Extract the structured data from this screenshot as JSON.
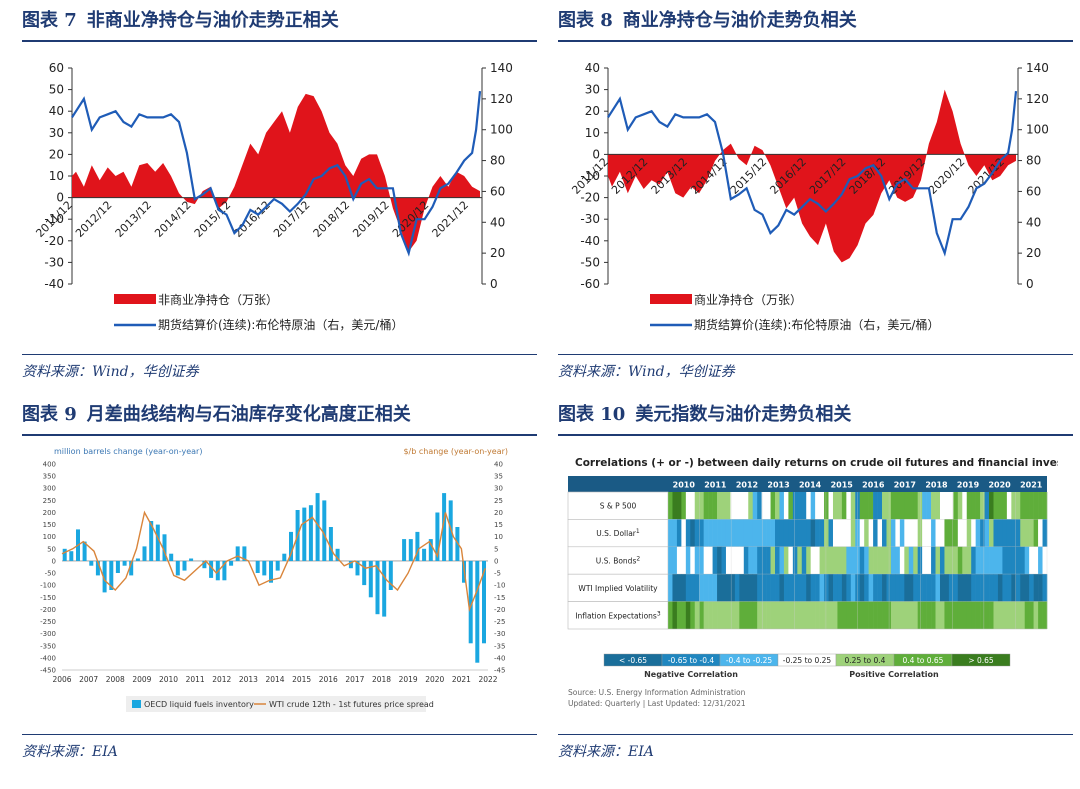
{
  "figures": [
    {
      "num": "图表 7",
      "title": "非商业净持仓与油价走势正相关",
      "source": "资料来源：Wind，华创证券"
    },
    {
      "num": "图表 8",
      "title": "商业净持仓与油价走势负相关",
      "source": "资料来源：Wind，华创证券"
    },
    {
      "num": "图表 9",
      "title": "月差曲线结构与石油库存变化高度正相关",
      "source": "资料来源：EIA"
    },
    {
      "num": "图表 10",
      "title": "美元指数与油价走势负相关",
      "source": "资料来源：EIA"
    }
  ],
  "chart_data": [
    {
      "type": "area",
      "left_ylim": [
        -40,
        60
      ],
      "left_yticks": [
        60,
        50,
        40,
        30,
        20,
        10,
        0,
        -10,
        -20,
        -30,
        -40
      ],
      "right_ylim": [
        0,
        140
      ],
      "right_yticks": [
        140,
        120,
        100,
        80,
        60,
        40,
        20,
        0
      ],
      "x_ticks": [
        "2011/12",
        "2012/12",
        "2013/12",
        "2014/12",
        "2015/12",
        "2016/12",
        "2017/12",
        "2018/12",
        "2019/12",
        "2020/12",
        "2021/12"
      ],
      "series": [
        {
          "name": "非商业净持仓（万张）",
          "kind": "area",
          "axis": "left",
          "color": "#e0141b",
          "x": [
            2011.9,
            2012.0,
            2012.2,
            2012.4,
            2012.6,
            2012.8,
            2013.0,
            2013.2,
            2013.4,
            2013.6,
            2013.8,
            2014.0,
            2014.2,
            2014.4,
            2014.6,
            2014.8,
            2015.0,
            2015.2,
            2015.4,
            2015.6,
            2015.8,
            2016.0,
            2016.2,
            2016.4,
            2016.6,
            2016.8,
            2017.0,
            2017.2,
            2017.4,
            2017.6,
            2017.8,
            2018.0,
            2018.2,
            2018.4,
            2018.6,
            2018.8,
            2019.0,
            2019.2,
            2019.4,
            2019.6,
            2019.8,
            2020.0,
            2020.2,
            2020.4,
            2020.6,
            2020.8,
            2021.0,
            2021.2,
            2021.4,
            2021.6,
            2021.8,
            2022.0,
            2022.2
          ],
          "values": [
            10,
            12,
            5,
            15,
            8,
            14,
            10,
            12,
            5,
            15,
            16,
            12,
            16,
            10,
            2,
            -2,
            -3,
            3,
            5,
            -5,
            -2,
            5,
            15,
            25,
            20,
            30,
            35,
            40,
            30,
            42,
            48,
            47,
            40,
            30,
            25,
            15,
            10,
            18,
            20,
            20,
            10,
            -5,
            -15,
            -25,
            -20,
            -5,
            5,
            10,
            5,
            12,
            10,
            5,
            3
          ]
        },
        {
          "name": "期货结算价(连续):布伦特原油（右，美元/桶）",
          "kind": "line",
          "axis": "right",
          "color": "#1f5cb7",
          "x": [
            2011.9,
            2012.0,
            2012.2,
            2012.4,
            2012.6,
            2012.8,
            2013.0,
            2013.2,
            2013.4,
            2013.6,
            2013.8,
            2014.0,
            2014.2,
            2014.4,
            2014.6,
            2014.8,
            2015.0,
            2015.2,
            2015.4,
            2015.6,
            2015.8,
            2016.0,
            2016.2,
            2016.4,
            2016.6,
            2016.8,
            2017.0,
            2017.2,
            2017.4,
            2017.6,
            2017.8,
            2018.0,
            2018.2,
            2018.4,
            2018.6,
            2018.8,
            2019.0,
            2019.2,
            2019.4,
            2019.6,
            2019.8,
            2020.0,
            2020.2,
            2020.4,
            2020.6,
            2020.8,
            2021.0,
            2021.2,
            2021.4,
            2021.6,
            2021.8,
            2022.0,
            2022.1,
            2022.2
          ],
          "values": [
            108,
            112,
            120,
            100,
            108,
            110,
            112,
            105,
            102,
            110,
            108,
            108,
            108,
            110,
            105,
            85,
            55,
            58,
            62,
            48,
            45,
            33,
            38,
            48,
            45,
            50,
            55,
            52,
            47,
            52,
            58,
            68,
            70,
            75,
            77,
            70,
            55,
            65,
            68,
            62,
            62,
            62,
            33,
            20,
            42,
            42,
            50,
            62,
            65,
            72,
            80,
            85,
            100,
            125
          ]
        }
      ]
    },
    {
      "type": "area",
      "left_ylim": [
        -60,
        40
      ],
      "left_yticks": [
        40,
        30,
        20,
        10,
        0,
        -10,
        -20,
        -30,
        -40,
        -50,
        -60
      ],
      "right_ylim": [
        0,
        140
      ],
      "right_yticks": [
        140,
        120,
        100,
        80,
        60,
        40,
        20,
        0
      ],
      "x_ticks": [
        "2011/12",
        "2012/12",
        "2013/12",
        "2014/12",
        "2015/12",
        "2016/12",
        "2017/12",
        "2018/12",
        "2019/12",
        "2020/12",
        "2021/12"
      ],
      "series": [
        {
          "name": "商业净持仓（万张）",
          "kind": "area",
          "axis": "left",
          "color": "#e0141b",
          "x": [
            2011.9,
            2012.0,
            2012.2,
            2012.4,
            2012.6,
            2012.8,
            2013.0,
            2013.2,
            2013.4,
            2013.6,
            2013.8,
            2014.0,
            2014.2,
            2014.4,
            2014.6,
            2014.8,
            2015.0,
            2015.2,
            2015.4,
            2015.6,
            2015.8,
            2016.0,
            2016.2,
            2016.4,
            2016.6,
            2016.8,
            2017.0,
            2017.2,
            2017.4,
            2017.6,
            2017.8,
            2018.0,
            2018.2,
            2018.4,
            2018.6,
            2018.8,
            2019.0,
            2019.2,
            2019.4,
            2019.6,
            2019.8,
            2020.0,
            2020.2,
            2020.4,
            2020.6,
            2020.8,
            2021.0,
            2021.2,
            2021.4,
            2021.6,
            2021.8,
            2022.0,
            2022.2
          ],
          "values": [
            -10,
            -15,
            -8,
            -18,
            -10,
            -16,
            -12,
            -14,
            -8,
            -18,
            -20,
            -15,
            -18,
            -12,
            -3,
            2,
            5,
            -2,
            -5,
            4,
            2,
            -5,
            -15,
            -25,
            -20,
            -32,
            -38,
            -42,
            -32,
            -45,
            -50,
            -48,
            -42,
            -32,
            -28,
            -18,
            -12,
            -20,
            -22,
            -20,
            -12,
            5,
            15,
            30,
            20,
            5,
            -5,
            -10,
            -5,
            -12,
            -10,
            -5,
            -3
          ]
        },
        {
          "name": "期货结算价(连续):布伦特原油（右，美元/桶）",
          "kind": "line",
          "axis": "right",
          "color": "#1f5cb7",
          "x": [
            2011.9,
            2012.0,
            2012.2,
            2012.4,
            2012.6,
            2012.8,
            2013.0,
            2013.2,
            2013.4,
            2013.6,
            2013.8,
            2014.0,
            2014.2,
            2014.4,
            2014.6,
            2014.8,
            2015.0,
            2015.2,
            2015.4,
            2015.6,
            2015.8,
            2016.0,
            2016.2,
            2016.4,
            2016.6,
            2016.8,
            2017.0,
            2017.2,
            2017.4,
            2017.6,
            2017.8,
            2018.0,
            2018.2,
            2018.4,
            2018.6,
            2018.8,
            2019.0,
            2019.2,
            2019.4,
            2019.6,
            2019.8,
            2020.0,
            2020.2,
            2020.4,
            2020.6,
            2020.8,
            2021.0,
            2021.2,
            2021.4,
            2021.6,
            2021.8,
            2022.0,
            2022.1,
            2022.2
          ],
          "values": [
            108,
            112,
            120,
            100,
            108,
            110,
            112,
            105,
            102,
            110,
            108,
            108,
            108,
            110,
            105,
            85,
            55,
            58,
            62,
            48,
            45,
            33,
            38,
            48,
            45,
            50,
            55,
            52,
            47,
            52,
            58,
            68,
            70,
            75,
            77,
            70,
            55,
            65,
            68,
            62,
            62,
            62,
            33,
            20,
            42,
            42,
            50,
            62,
            65,
            72,
            80,
            85,
            100,
            125
          ]
        }
      ]
    },
    {
      "type": "bar",
      "left_label": "million barrels change (year-on-year)",
      "right_label": "$/b change (year-on-year)",
      "left_ylim": [
        -450,
        400
      ],
      "left_yticks": [
        400,
        350,
        300,
        250,
        200,
        150,
        100,
        50,
        0,
        -50,
        -100,
        -150,
        -200,
        -250,
        -300,
        -350,
        -400,
        -450
      ],
      "right_ylim": [
        -45,
        40
      ],
      "right_yticks": [
        40,
        35,
        30,
        25,
        20,
        15,
        10,
        5,
        0,
        -5,
        -10,
        -15,
        -20,
        -25,
        -30,
        -35,
        -40,
        -45
      ],
      "x_ticks": [
        "2006",
        "2007",
        "2008",
        "2009",
        "2010",
        "2011",
        "2012",
        "2013",
        "2014",
        "2015",
        "2016",
        "2017",
        "2018",
        "2019",
        "2020",
        "2021",
        "2022"
      ],
      "series": [
        {
          "name": "OECD liquid fuels inventory",
          "kind": "bar",
          "axis": "left",
          "color": "#1aa7e0",
          "x": [
            2006.1,
            2006.35,
            2006.6,
            2006.85,
            2007.1,
            2007.35,
            2007.6,
            2007.85,
            2008.1,
            2008.35,
            2008.6,
            2008.85,
            2009.1,
            2009.35,
            2009.6,
            2009.85,
            2010.1,
            2010.35,
            2010.6,
            2010.85,
            2011.1,
            2011.35,
            2011.6,
            2011.85,
            2012.1,
            2012.35,
            2012.6,
            2012.85,
            2013.1,
            2013.35,
            2013.6,
            2013.85,
            2014.1,
            2014.35,
            2014.6,
            2014.85,
            2015.1,
            2015.35,
            2015.6,
            2015.85,
            2016.1,
            2016.35,
            2016.6,
            2016.85,
            2017.1,
            2017.35,
            2017.6,
            2017.85,
            2018.1,
            2018.35,
            2018.6,
            2018.85,
            2019.1,
            2019.35,
            2019.6,
            2019.85,
            2020.1,
            2020.35,
            2020.6,
            2020.85,
            2021.1,
            2021.35,
            2021.6,
            2021.85
          ],
          "values": [
            50,
            40,
            130,
            80,
            -20,
            -60,
            -130,
            -120,
            -50,
            -20,
            -60,
            10,
            60,
            165,
            150,
            110,
            30,
            -60,
            -40,
            10,
            0,
            -30,
            -70,
            -80,
            -80,
            -20,
            60,
            60,
            0,
            -50,
            -60,
            -90,
            -40,
            30,
            120,
            210,
            220,
            230,
            280,
            250,
            140,
            50,
            0,
            -30,
            -60,
            -100,
            -150,
            -220,
            -230,
            -120,
            0,
            90,
            90,
            120,
            50,
            90,
            200,
            280,
            250,
            140,
            -90,
            -340,
            -420,
            -340
          ]
        },
        {
          "name": "WTI crude 12th - 1st futures price spread",
          "kind": "line",
          "axis": "right",
          "color": "#d9853b",
          "x": [
            2006.0,
            2006.4,
            2006.8,
            2007.2,
            2007.6,
            2008.0,
            2008.4,
            2008.8,
            2009.1,
            2009.4,
            2009.8,
            2010.2,
            2010.6,
            2011.0,
            2011.4,
            2011.8,
            2012.2,
            2012.6,
            2013.0,
            2013.4,
            2013.8,
            2014.2,
            2014.6,
            2015.0,
            2015.4,
            2015.8,
            2016.2,
            2016.6,
            2017.0,
            2017.4,
            2017.8,
            2018.2,
            2018.6,
            2019.0,
            2019.4,
            2019.8,
            2020.1,
            2020.4,
            2020.7,
            2021.0,
            2021.3,
            2021.6,
            2021.9
          ],
          "values": [
            3,
            5,
            8,
            4,
            -8,
            -12,
            -7,
            5,
            20,
            14,
            5,
            -6,
            -8,
            -4,
            0,
            -5,
            0,
            2,
            0,
            -10,
            -8,
            -7,
            3,
            15,
            18,
            12,
            3,
            -2,
            0,
            -3,
            -2,
            -8,
            -12,
            -5,
            5,
            8,
            2,
            20,
            10,
            5,
            -20,
            -12,
            -3
          ]
        }
      ]
    },
    {
      "type": "heatmap",
      "title": "Correlations (+ or -) between daily returns on crude oil futures and financial investments",
      "years": [
        "2010",
        "2011",
        "2012",
        "2013",
        "2014",
        "2015",
        "2016",
        "2017",
        "2018",
        "2019",
        "2020",
        "2021"
      ],
      "rows": [
        {
          "label": "S & P 500",
          "sup": ""
        },
        {
          "label": "U.S. Dollar",
          "sup": "1"
        },
        {
          "label": "U.S. Bonds",
          "sup": "2"
        },
        {
          "label": "WTI Implied Volatility",
          "sup": ""
        },
        {
          "label": "Inflation Expectations",
          "sup": "3"
        }
      ],
      "codes": [
        "5665334455544433334213354235111323353445341555114455555542244333543555416555344555555",
        "2213101122222222222222221111111101141333342343131423233343323355533432124111111444531",
        "2233232233101333312211141243141433444444222124444422342413314144454412222221111123323",
        "2000111222200001000011111011111011210110121012110111100111112001100011111101101001001",
        "5655654544444444555544444444444444444455555555555544444455554455555555555444444455455"
      ],
      "legend": [
        {
          "label": "< -0.65",
          "color": "#1a6e9a"
        },
        {
          "label": "-0.65 to -0.4",
          "color": "#1f86bf"
        },
        {
          "label": "-0.4 to -0.25",
          "color": "#4cb5ec"
        },
        {
          "label": "-0.25 to 0.25",
          "color": "#ffffff"
        },
        {
          "label": "0.25 to 0.4",
          "color": "#9ed27a"
        },
        {
          "label": "0.4 to 0.65",
          "color": "#5fae3a"
        },
        {
          "label": "> 0.65",
          "color": "#3a7d1f"
        }
      ],
      "neg_label": "Negative Correlation",
      "pos_label": "Positive Correlation",
      "source_line1": "Source: U.S. Energy Information Administration",
      "source_line2": "Updated: Quarterly | Last Updated: 12/31/2021"
    }
  ]
}
